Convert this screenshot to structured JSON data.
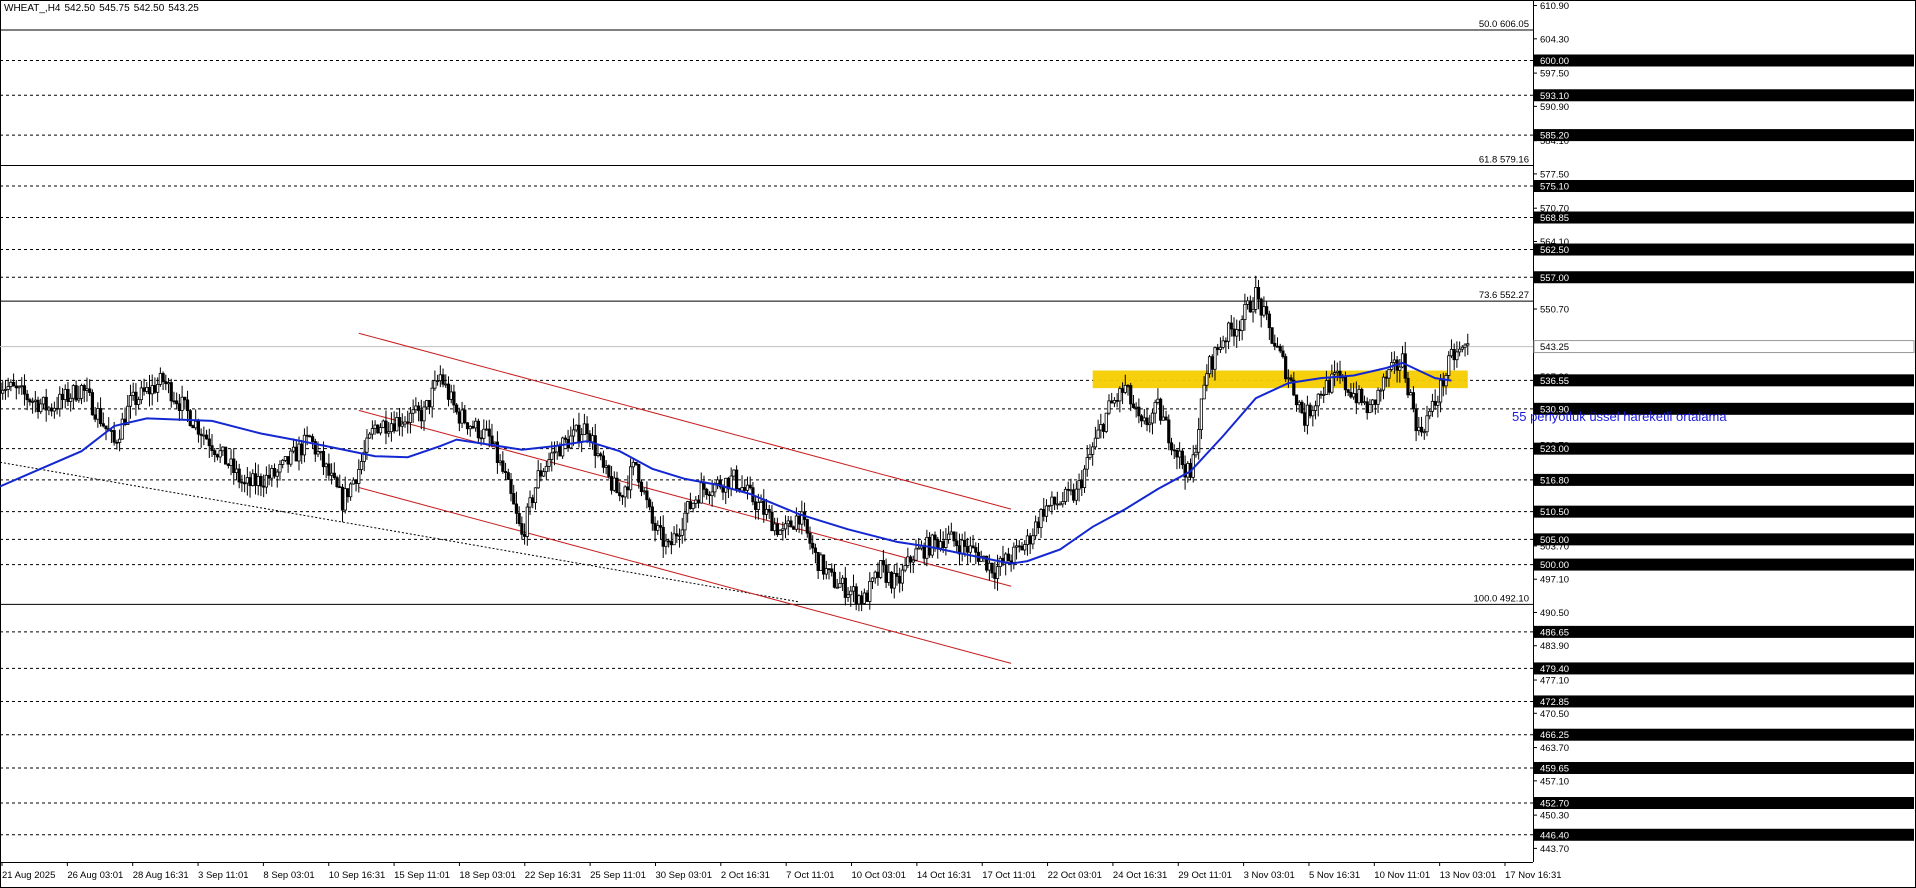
{
  "header": {
    "symbol": "WHEAT_,H4",
    "open": "542.50",
    "high": "545.75",
    "low": "542.50",
    "close": "543.25"
  },
  "ema_label": "55 periyotluk üssel hareketli ortalama",
  "colors": {
    "background": "#ffffff",
    "candle": "#000000",
    "ema": "#1428d2",
    "channel": "#c81e1e",
    "zone": "#f5cc00",
    "price_line": "#c0c0c0",
    "axis_text": "#000000"
  },
  "chart_data": {
    "type": "candlestick",
    "instrument": "WHEAT_",
    "timeframe": "H4",
    "ylim": [
      441,
      612
    ],
    "price_scale_labels": [
      "610.90",
      "604.30",
      "597.50",
      "590.90",
      "584.10",
      "577.50",
      "570.70",
      "564.10",
      "557.30",
      "550.70",
      "543.90",
      "537.30",
      "530.50",
      "523.70",
      "517.10",
      "510.30",
      "503.70",
      "497.10",
      "490.50",
      "483.90",
      "477.10",
      "470.50",
      "463.70",
      "457.10",
      "450.30",
      "443.70"
    ],
    "x_labels": [
      "21 Aug 2025",
      "26 Aug 03:01",
      "28 Aug 16:31",
      "3 Sep 11:01",
      "8 Sep 03:01",
      "10 Sep 16:31",
      "15 Sep 11:01",
      "18 Sep 03:01",
      "22 Sep 16:31",
      "25 Sep 11:01",
      "30 Sep 03:01",
      "2 Oct 16:31",
      "7 Oct 11:01",
      "10 Oct 03:01",
      "14 Oct 16:31",
      "17 Oct 11:01",
      "22 Oct 03:01",
      "24 Oct 16:31",
      "29 Oct 11:01",
      "3 Nov 03:01",
      "5 Nov 16:31",
      "10 Nov 11:01",
      "13 Nov 03:01",
      "17 Nov 16:31"
    ],
    "horizontal_levels": [
      {
        "price": 600.0,
        "label": "600.00"
      },
      {
        "price": 593.1,
        "label": "593.10"
      },
      {
        "price": 585.2,
        "label": "585.20"
      },
      {
        "price": 575.1,
        "label": "575.10"
      },
      {
        "price": 568.85,
        "label": "568.85"
      },
      {
        "price": 562.5,
        "label": "562.50"
      },
      {
        "price": 557.0,
        "label": "557.00"
      },
      {
        "price": 536.55,
        "label": "536.55"
      },
      {
        "price": 530.9,
        "label": "530.90"
      },
      {
        "price": 523.0,
        "label": "523.00"
      },
      {
        "price": 516.8,
        "label": "516.80"
      },
      {
        "price": 510.5,
        "label": "510.50"
      },
      {
        "price": 505.0,
        "label": "505.00"
      },
      {
        "price": 500.0,
        "label": "500.00"
      },
      {
        "price": 486.65,
        "label": "486.65"
      },
      {
        "price": 479.4,
        "label": "479.40"
      },
      {
        "price": 472.85,
        "label": "472.85"
      },
      {
        "price": 466.25,
        "label": "466.25"
      },
      {
        "price": 459.65,
        "label": "459.65"
      },
      {
        "price": 452.7,
        "label": "452.70"
      },
      {
        "price": 446.4,
        "label": "446.40"
      }
    ],
    "fibonacci_levels": [
      {
        "price": 606.05,
        "label": "50.0 606.05"
      },
      {
        "price": 579.16,
        "label": "61.8 579.16"
      },
      {
        "price": 552.27,
        "label": "73.6 552.27"
      },
      {
        "price": 492.1,
        "label": "100.0 492.10"
      }
    ],
    "current_price": {
      "price": 543.25,
      "label": "543.25"
    },
    "zone": {
      "from_date": "27 Oct",
      "to_date": "19 Nov",
      "top": 538.5,
      "bottom": 535.0
    },
    "channel_lines": [
      {
        "start": {
          "date": "12 Sep",
          "price": 545.9
        },
        "end": {
          "date": "22 Oct",
          "price": 511.0
        }
      },
      {
        "start": {
          "date": "12 Sep",
          "price": 530.6
        },
        "end": {
          "date": "22 Oct",
          "price": 495.7
        }
      },
      {
        "start": {
          "date": "12 Sep",
          "price": 515.3
        },
        "end": {
          "date": "22 Oct",
          "price": 480.4
        }
      }
    ],
    "trend_line": {
      "start": {
        "date": "21 Aug",
        "price": 520.3
      },
      "end": {
        "date": "9 Oct",
        "price": 492.6
      }
    },
    "ema": {
      "period": 55,
      "points": [
        {
          "t": "21 Aug",
          "v": 515.5
        },
        {
          "t": "23 Aug",
          "v": 518.3
        },
        {
          "t": "26 Aug",
          "v": 522.5
        },
        {
          "t": "28 Aug",
          "v": 527.5
        },
        {
          "t": "30 Aug",
          "v": 529.0
        },
        {
          "t": "3 Sep",
          "v": 528.5
        },
        {
          "t": "6 Sep",
          "v": 526.0
        },
        {
          "t": "8 Sep",
          "v": 524.8
        },
        {
          "t": "10 Sep",
          "v": 523.5
        },
        {
          "t": "13 Sep",
          "v": 521.5
        },
        {
          "t": "15 Sep",
          "v": 521.3
        },
        {
          "t": "17 Sep",
          "v": 523.5
        },
        {
          "t": "18 Sep",
          "v": 524.8
        },
        {
          "t": "20 Sep",
          "v": 523.8
        },
        {
          "t": "22 Sep",
          "v": 522.8
        },
        {
          "t": "24 Sep",
          "v": 523.5
        },
        {
          "t": "26 Sep",
          "v": 524.5
        },
        {
          "t": "28 Sep",
          "v": 522.5
        },
        {
          "t": "30 Sep",
          "v": 519.0
        },
        {
          "t": "2 Oct",
          "v": 517.0
        },
        {
          "t": "4 Oct",
          "v": 515.8
        },
        {
          "t": "6 Oct",
          "v": 514.0
        },
        {
          "t": "9 Oct",
          "v": 510.0
        },
        {
          "t": "12 Oct",
          "v": 507.0
        },
        {
          "t": "15 Oct",
          "v": 504.5
        },
        {
          "t": "17 Oct",
          "v": 503.5
        },
        {
          "t": "20 Oct",
          "v": 501.5
        },
        {
          "t": "22 Oct",
          "v": 500.2
        },
        {
          "t": "23 Oct",
          "v": 500.7
        },
        {
          "t": "25 Oct",
          "v": 503.0
        },
        {
          "t": "27 Oct",
          "v": 507.5
        },
        {
          "t": "29 Oct",
          "v": 511.0
        },
        {
          "t": "31 Oct",
          "v": 515.0
        },
        {
          "t": "2 Nov",
          "v": 518.5
        },
        {
          "t": "4 Nov",
          "v": 525.5
        },
        {
          "t": "6 Nov",
          "v": 533.0
        },
        {
          "t": "8 Nov",
          "v": 536.0
        },
        {
          "t": "10 Nov",
          "v": 537.0
        },
        {
          "t": "12 Nov",
          "v": 537.5
        },
        {
          "t": "14 Nov",
          "v": 539.0
        },
        {
          "t": "15 Nov",
          "v": 540.0
        },
        {
          "t": "17 Nov",
          "v": 537.0
        },
        {
          "t": "18 Nov",
          "v": 536.5
        }
      ]
    },
    "price_path": [
      {
        "t": "21 Aug",
        "v": 536.0
      },
      {
        "t": "24 Aug",
        "v": 531.0
      },
      {
        "t": "26 Aug",
        "v": 535.0
      },
      {
        "t": "27 Aug",
        "v": 530.0
      },
      {
        "t": "28 Aug",
        "v": 524.0
      },
      {
        "t": "29 Aug",
        "v": 532.0
      },
      {
        "t": "31 Aug",
        "v": 536.5
      },
      {
        "t": "2 Sep",
        "v": 528.0
      },
      {
        "t": "4 Sep",
        "v": 520.0
      },
      {
        "t": "5 Sep",
        "v": 515.5
      },
      {
        "t": "7 Sep",
        "v": 518.0
      },
      {
        "t": "9 Sep",
        "v": 525.0
      },
      {
        "t": "11 Sep",
        "v": 512.5
      },
      {
        "t": "12 Sep",
        "v": 519.0
      },
      {
        "t": "13 Sep",
        "v": 527.5
      },
      {
        "t": "16 Sep",
        "v": 530.0
      },
      {
        "t": "17 Sep",
        "v": 537.5
      },
      {
        "t": "18 Sep",
        "v": 530.0
      },
      {
        "t": "20 Sep",
        "v": 525.0
      },
      {
        "t": "21 Sep",
        "v": 517.0
      },
      {
        "t": "22 Sep",
        "v": 505.5
      },
      {
        "t": "23 Sep",
        "v": 517.5
      },
      {
        "t": "24 Sep",
        "v": 522.5
      },
      {
        "t": "26 Sep",
        "v": 527.5
      },
      {
        "t": "27 Sep",
        "v": 518.5
      },
      {
        "t": "28 Sep",
        "v": 513.5
      },
      {
        "t": "29 Sep",
        "v": 520.0
      },
      {
        "t": "30 Sep",
        "v": 508.0
      },
      {
        "t": "1 Oct",
        "v": 503.0
      },
      {
        "t": "2 Oct",
        "v": 510.0
      },
      {
        "t": "3 Oct",
        "v": 515.0
      },
      {
        "t": "5 Oct",
        "v": 517.0
      },
      {
        "t": "7 Oct",
        "v": 510.0
      },
      {
        "t": "8 Oct",
        "v": 506.0
      },
      {
        "t": "9 Oct",
        "v": 510.0
      },
      {
        "t": "10 Oct",
        "v": 501.5
      },
      {
        "t": "11 Oct",
        "v": 497.0
      },
      {
        "t": "13 Oct",
        "v": 493.0
      },
      {
        "t": "14 Oct",
        "v": 499.0
      },
      {
        "t": "15 Oct",
        "v": 496.0
      },
      {
        "t": "16 Oct",
        "v": 502.0
      },
      {
        "t": "18 Oct",
        "v": 505.5
      },
      {
        "t": "20 Oct",
        "v": 502.0
      },
      {
        "t": "21 Oct",
        "v": 499.0
      },
      {
        "t": "22 Oct",
        "v": 501.5
      },
      {
        "t": "23 Oct",
        "v": 504.5
      },
      {
        "t": "24 Oct",
        "v": 511.0
      },
      {
        "t": "26 Oct",
        "v": 514.0
      },
      {
        "t": "27 Oct",
        "v": 523.0
      },
      {
        "t": "28 Oct",
        "v": 531.0
      },
      {
        "t": "29 Oct",
        "v": 535.0
      },
      {
        "t": "30 Oct",
        "v": 527.0
      },
      {
        "t": "31 Oct",
        "v": 531.0
      },
      {
        "t": "1 Nov",
        "v": 523.5
      },
      {
        "t": "2 Nov",
        "v": 517.0
      },
      {
        "t": "3 Nov",
        "v": 538.5
      },
      {
        "t": "4 Nov",
        "v": 545.0
      },
      {
        "t": "5 Nov",
        "v": 548.0
      },
      {
        "t": "6 Nov",
        "v": 553.5
      },
      {
        "t": "7 Nov",
        "v": 545.0
      },
      {
        "t": "8 Nov",
        "v": 537.5
      },
      {
        "t": "9 Nov",
        "v": 529.0
      },
      {
        "t": "10 Nov",
        "v": 534.5
      },
      {
        "t": "11 Nov",
        "v": 537.0
      },
      {
        "t": "12 Nov",
        "v": 534.0
      },
      {
        "t": "13 Nov",
        "v": 530.5
      },
      {
        "t": "14 Nov",
        "v": 537.0
      },
      {
        "t": "15 Nov",
        "v": 540.5
      },
      {
        "t": "16 Nov",
        "v": 526.0
      },
      {
        "t": "17 Nov",
        "v": 532.0
      },
      {
        "t": "18 Nov",
        "v": 541.0
      },
      {
        "t": "19 Nov",
        "v": 543.25
      }
    ]
  }
}
